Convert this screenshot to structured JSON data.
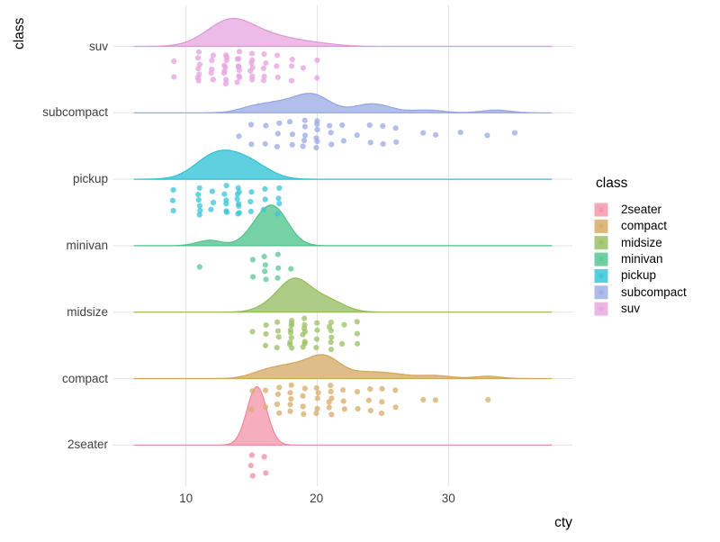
{
  "figure": {
    "background": "#ffffff"
  },
  "axis": {
    "y_title": "class",
    "x_title": "cty",
    "x_tick_labels": [
      "10",
      "20",
      "30"
    ],
    "grid_color": "#E4E4E4",
    "tick_text_color": "#404040"
  },
  "y_axis_labels": [
    "suv",
    "subcompact",
    "pickup",
    "minivan",
    "midsize",
    "compact",
    "2seater"
  ],
  "legend": {
    "title": "class",
    "entries": [
      {
        "label": "2seater"
      },
      {
        "label": "compact"
      },
      {
        "label": "midsize"
      },
      {
        "label": "minivan"
      },
      {
        "label": "pickup"
      },
      {
        "label": "subcompact"
      },
      {
        "label": "suv"
      }
    ]
  },
  "chart_data": {
    "type": "area",
    "subtype": "ridgeline-density-with-jittered-points",
    "title": "",
    "xlabel": "cty",
    "ylabel": "class",
    "x_ticks": [
      10,
      20,
      30
    ],
    "x_range": [
      4.5,
      39.4
    ],
    "grid": true,
    "legend_position": "right",
    "ridge_value_span": [
      6.05,
      37.85
    ],
    "classes": [
      {
        "name": "suv",
        "row": 0,
        "fill": "#EBB8E6",
        "stroke": "#E094D8",
        "point": "#E8A3DF",
        "density_gaussians": [
          [
            13.4,
            1.8,
            29
          ],
          [
            16.8,
            1.9,
            9
          ],
          [
            20.0,
            1.6,
            2.5
          ]
        ],
        "cty_counts": [
          [
            9,
            2
          ],
          [
            11,
            7
          ],
          [
            12,
            5
          ],
          [
            13,
            9
          ],
          [
            14,
            9
          ],
          [
            15,
            7
          ],
          [
            16,
            5
          ],
          [
            17,
            3
          ],
          [
            18,
            3
          ],
          [
            19,
            1
          ],
          [
            20,
            2
          ]
        ]
      },
      {
        "name": "subcompact",
        "row": 1,
        "fill": "#AEBCEA",
        "stroke": "#93A4E2",
        "point": "#9FACE6",
        "density_gaussians": [
          [
            19.7,
            1.3,
            18.5
          ],
          [
            17.0,
            1.6,
            11
          ],
          [
            14.8,
            1.0,
            3
          ],
          [
            24.2,
            1.4,
            10
          ],
          [
            28.4,
            1.2,
            3
          ],
          [
            33.6,
            1.1,
            3
          ]
        ],
        "cty_counts": [
          [
            14,
            1
          ],
          [
            15,
            2
          ],
          [
            16,
            2
          ],
          [
            17,
            3
          ],
          [
            18,
            3
          ],
          [
            19,
            5
          ],
          [
            20,
            6
          ],
          [
            21,
            3
          ],
          [
            22,
            2
          ],
          [
            23,
            1
          ],
          [
            24,
            2
          ],
          [
            25,
            2
          ],
          [
            26,
            2
          ],
          [
            28,
            1
          ],
          [
            29,
            1
          ],
          [
            31,
            1
          ],
          [
            33,
            1
          ],
          [
            35,
            1
          ]
        ]
      },
      {
        "name": "pickup",
        "row": 2,
        "fill": "#55CEDE",
        "stroke": "#2FBFD5",
        "point": "#3FC6D9",
        "density_gaussians": [
          [
            13.2,
            1.8,
            28
          ],
          [
            11.5,
            1.3,
            7
          ],
          [
            15.5,
            1.3,
            6
          ]
        ],
        "cty_counts": [
          [
            9,
            3
          ],
          [
            11,
            6
          ],
          [
            12,
            3
          ],
          [
            13,
            6
          ],
          [
            14,
            8
          ],
          [
            15,
            3
          ],
          [
            16,
            3
          ],
          [
            17,
            4
          ]
        ]
      },
      {
        "name": "minivan",
        "row": 3,
        "fill": "#6FCFA2",
        "stroke": "#4FC28A",
        "point": "#5FC997",
        "density_gaussians": [
          [
            16.6,
            1.15,
            43
          ],
          [
            15.1,
            0.95,
            7
          ],
          [
            11.8,
            0.95,
            6
          ]
        ],
        "cty_counts": [
          [
            11,
            1
          ],
          [
            15,
            2
          ],
          [
            16,
            4
          ],
          [
            17,
            3
          ],
          [
            18,
            1
          ]
        ]
      },
      {
        "name": "midsize",
        "row": 4,
        "fill": "#A9C97E",
        "stroke": "#93BB55",
        "point": "#9DC168",
        "density_gaussians": [
          [
            18.2,
            1.15,
            32
          ],
          [
            20.9,
            1.25,
            11
          ],
          [
            16.4,
            1.1,
            6
          ],
          [
            19.6,
            1.2,
            6
          ]
        ],
        "cty_counts": [
          [
            15,
            1
          ],
          [
            16,
            3
          ],
          [
            17,
            4
          ],
          [
            18,
            9
          ],
          [
            19,
            8
          ],
          [
            20,
            4
          ],
          [
            21,
            6
          ],
          [
            22,
            2
          ],
          [
            23,
            3
          ]
        ]
      },
      {
        "name": "compact",
        "row": 5,
        "fill": "#DDB982",
        "stroke": "#D1A558",
        "point": "#D8AE6E",
        "density_gaussians": [
          [
            20.6,
            1.15,
            19.5
          ],
          [
            18.2,
            1.7,
            15
          ],
          [
            15.8,
            1.1,
            4
          ],
          [
            23.3,
            1.5,
            5.5
          ],
          [
            25.6,
            1.5,
            4.5
          ],
          [
            29.0,
            1.2,
            3.2
          ],
          [
            33.0,
            1.05,
            2.6
          ]
        ],
        "cty_counts": [
          [
            15,
            2
          ],
          [
            16,
            2
          ],
          [
            17,
            4
          ],
          [
            18,
            5
          ],
          [
            19,
            4
          ],
          [
            20,
            5
          ],
          [
            21,
            6
          ],
          [
            22,
            3
          ],
          [
            23,
            2
          ],
          [
            24,
            3
          ],
          [
            25,
            3
          ],
          [
            26,
            2
          ],
          [
            28,
            1
          ],
          [
            29,
            1
          ],
          [
            33,
            1
          ]
        ]
      },
      {
        "name": "2seater",
        "row": 6,
        "fill": "#F5A9B8",
        "stroke": "#F0879B",
        "point": "#F291A5",
        "density_gaussians": [
          [
            15.4,
            0.75,
            65
          ]
        ],
        "cty_counts": [
          [
            15,
            3
          ],
          [
            16,
            2
          ]
        ]
      }
    ]
  }
}
